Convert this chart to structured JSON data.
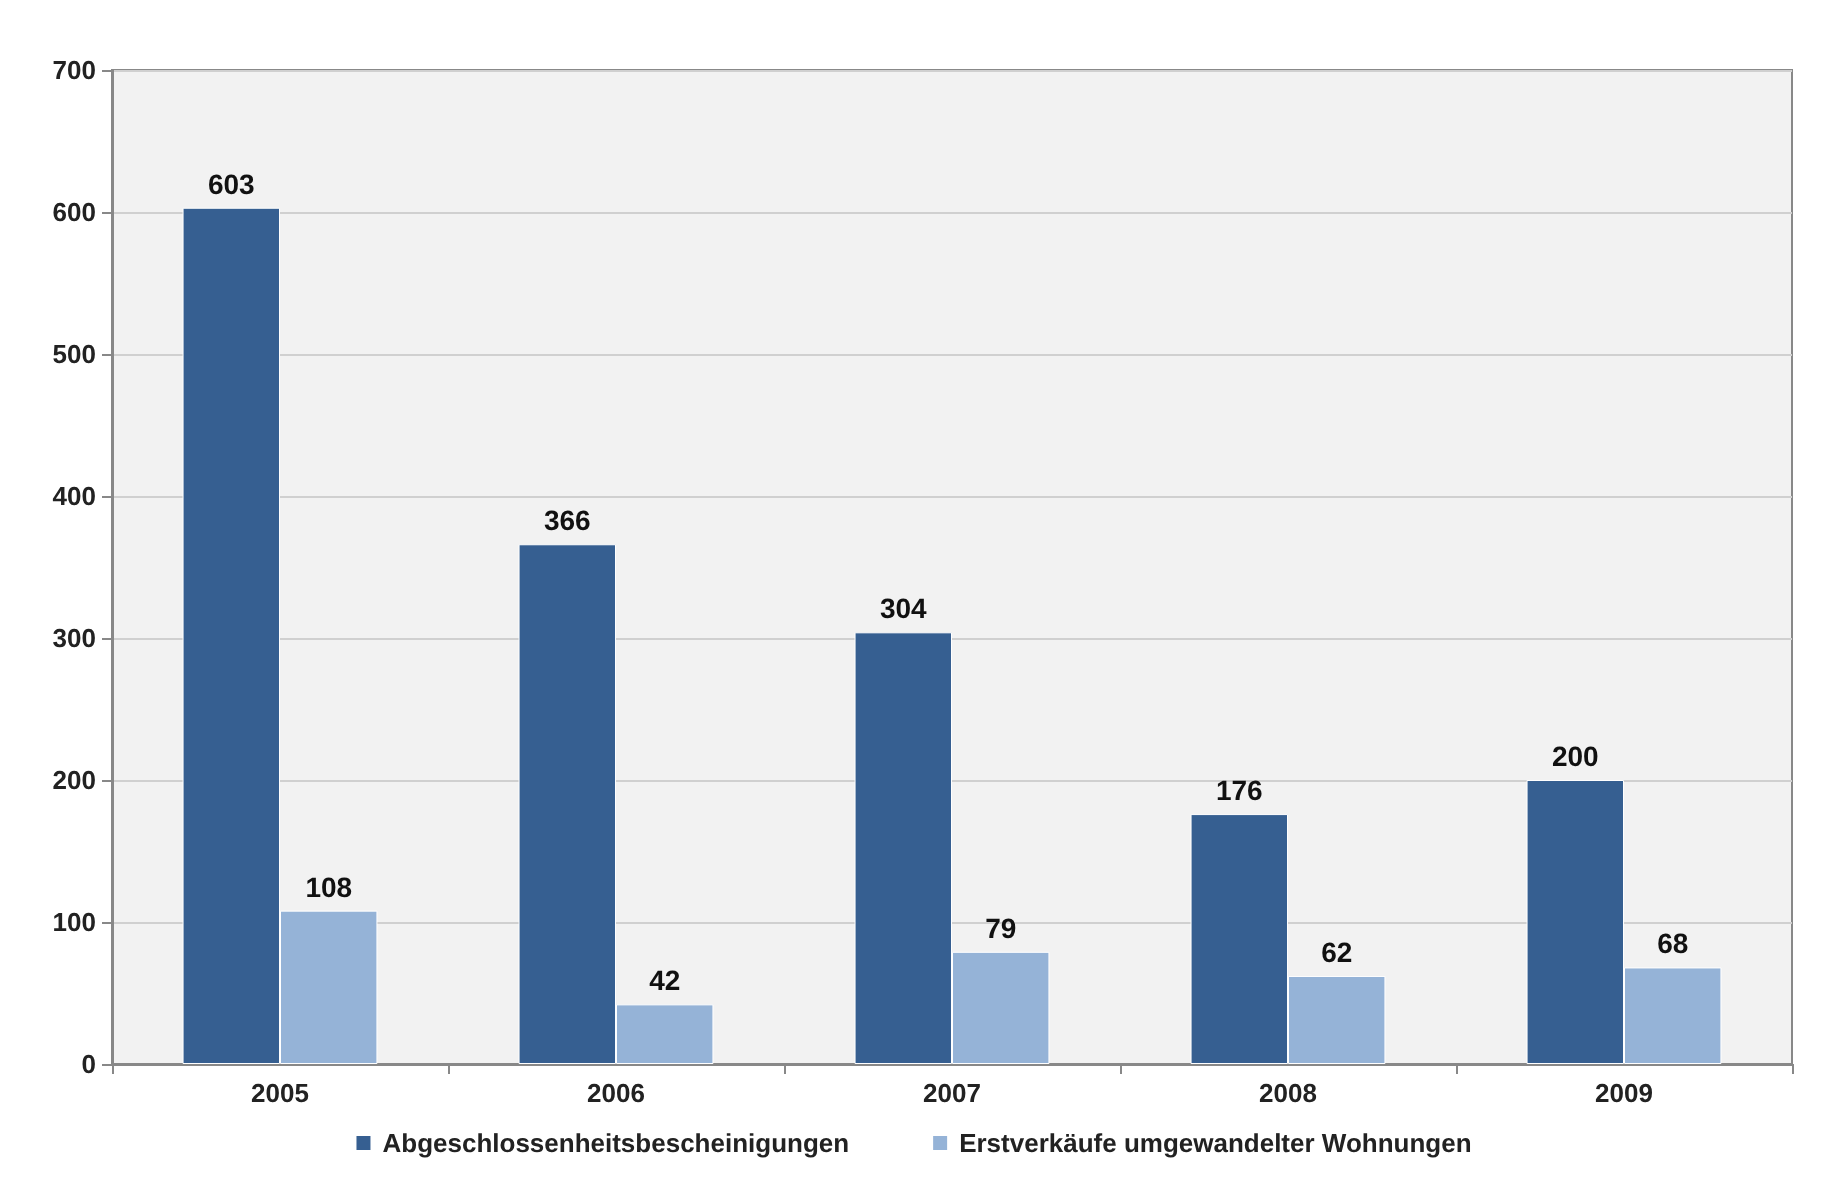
{
  "chart_data": {
    "type": "bar",
    "categories": [
      "2005",
      "2006",
      "2007",
      "2008",
      "2009"
    ],
    "series": [
      {
        "name": "Abgeschlossenheitsbescheinigungen",
        "color": "#365f91",
        "values": [
          603,
          366,
          304,
          176,
          200
        ]
      },
      {
        "name": "Erstverkäufe umgewandelter Wohnungen",
        "color": "#95b3d7",
        "values": [
          108,
          42,
          79,
          62,
          68
        ]
      }
    ],
    "ylim": [
      0,
      700
    ],
    "yticks": [
      0,
      100,
      200,
      300,
      400,
      500,
      600,
      700
    ],
    "grid": "y",
    "legend": "bottom",
    "data_labels": true
  }
}
